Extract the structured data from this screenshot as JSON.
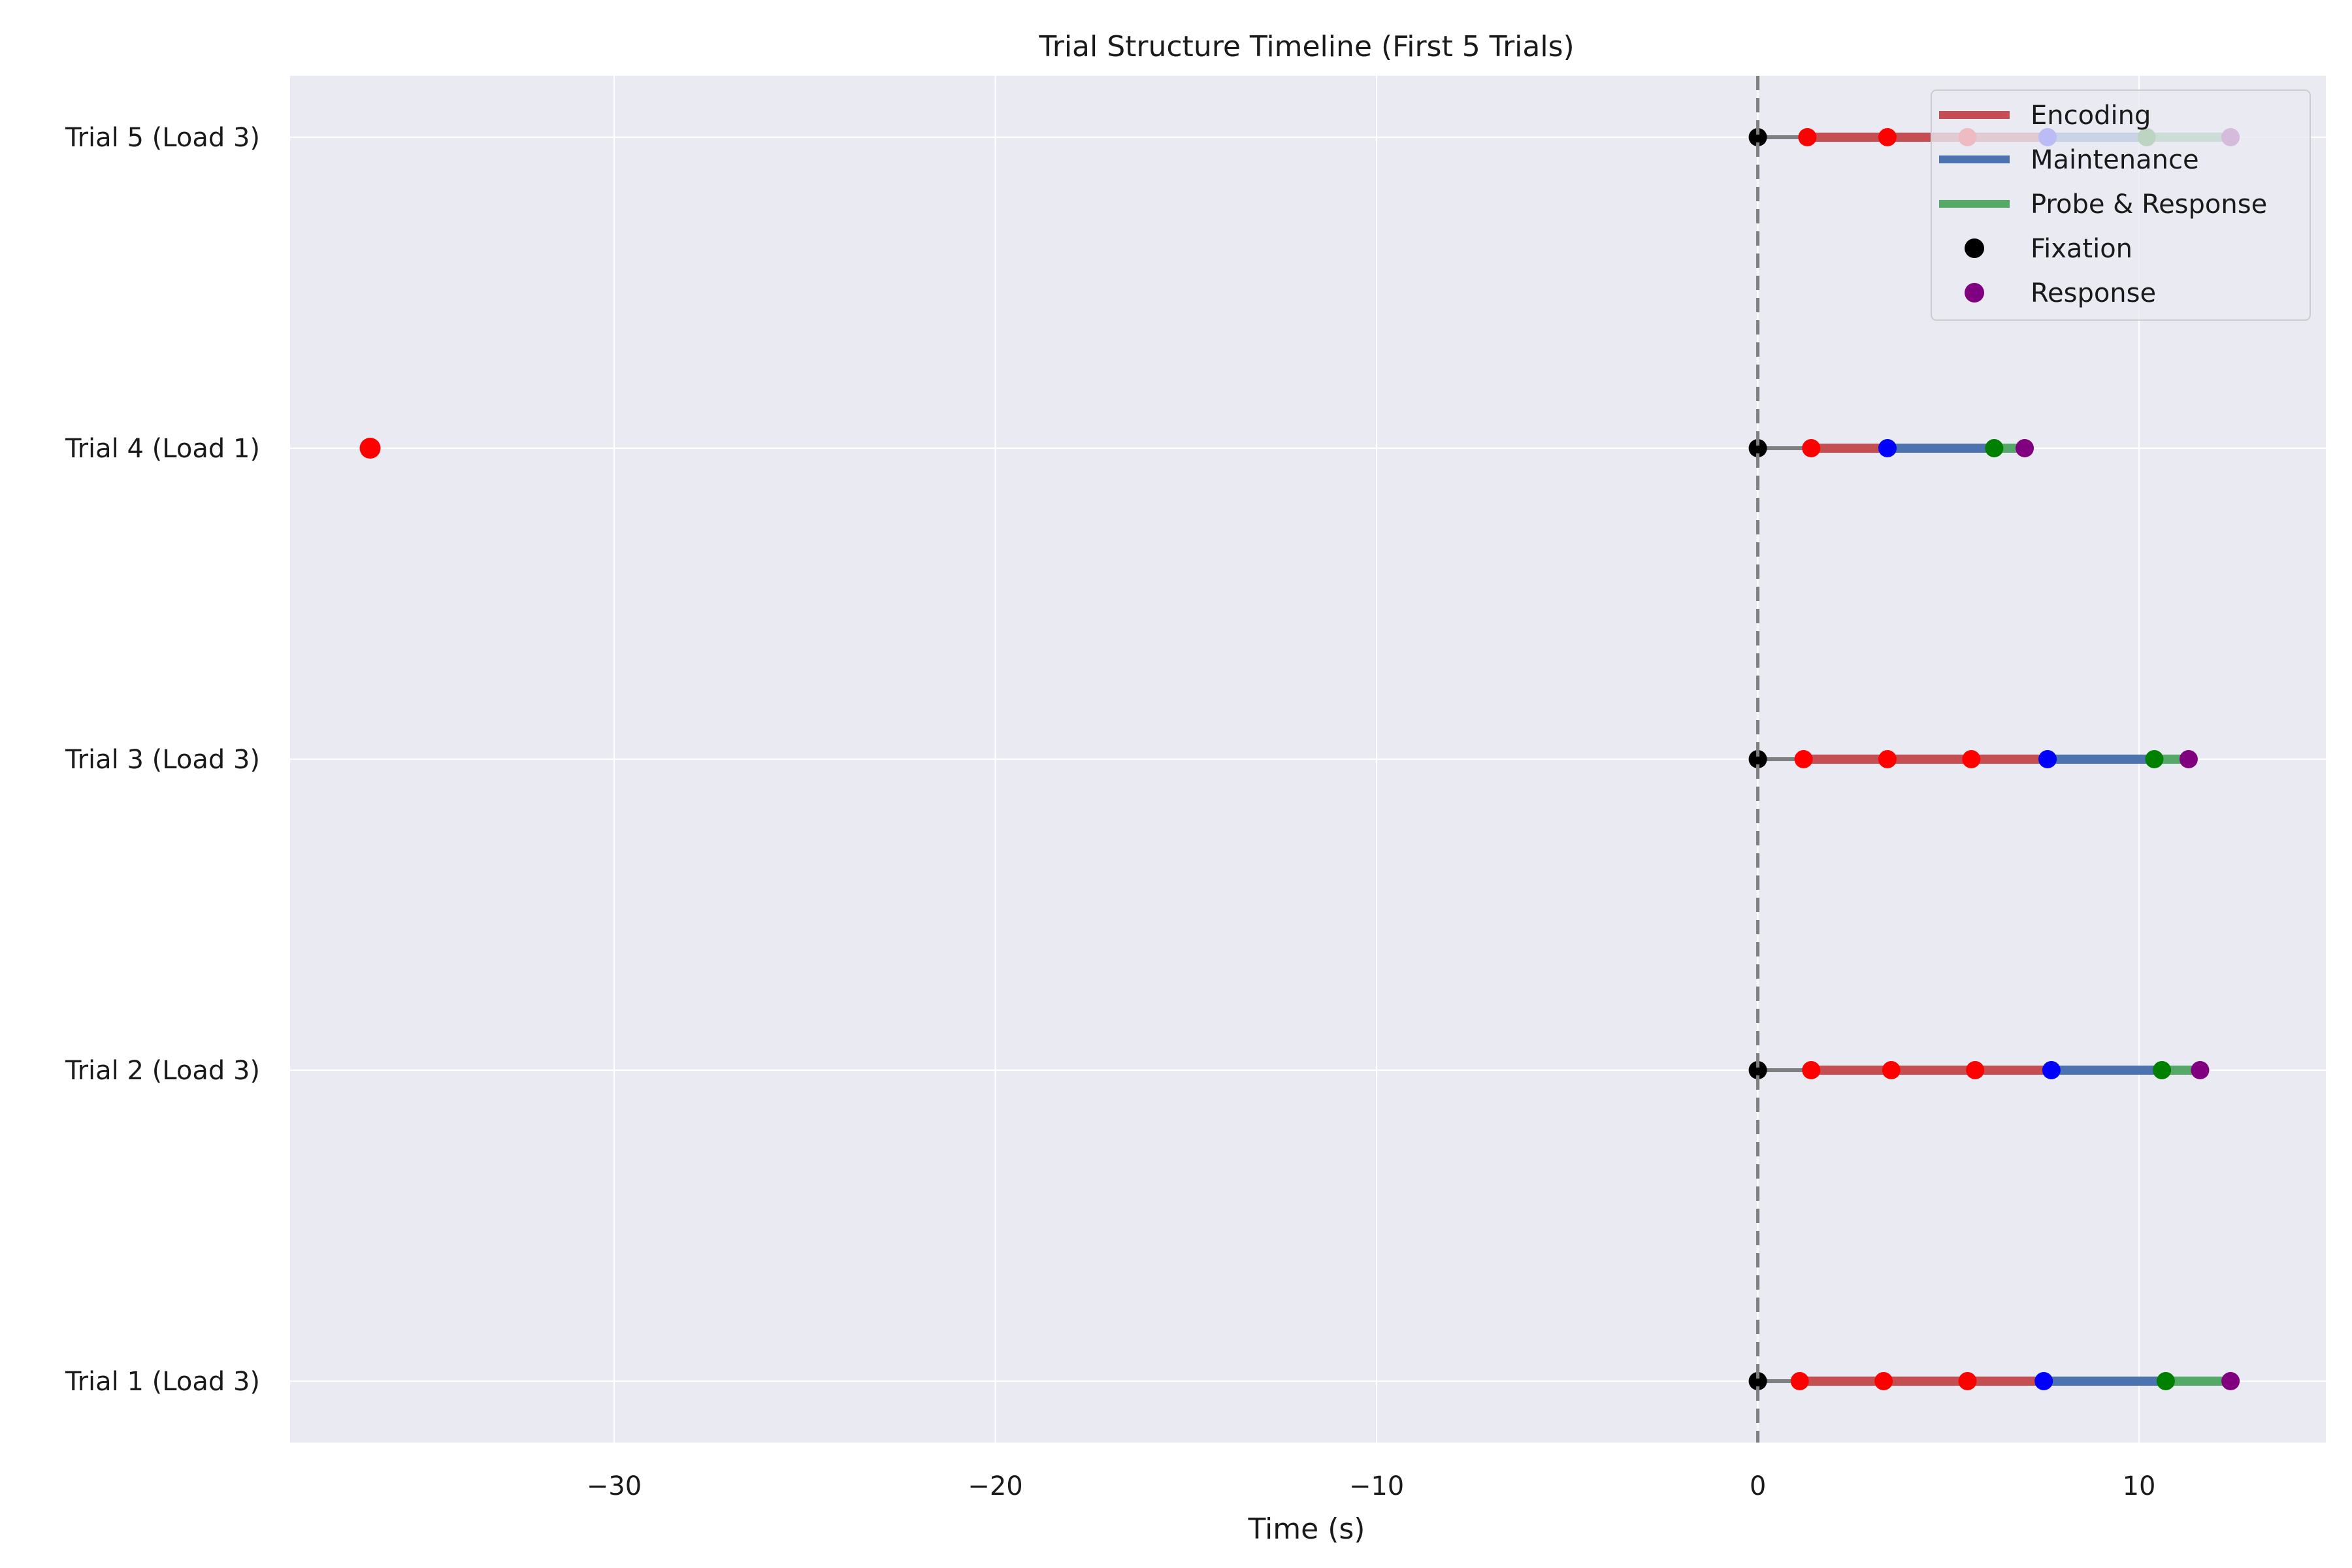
{
  "chart_data": {
    "type": "scatter",
    "title": "Trial Structure Timeline (First 5 Trials)",
    "xlabel": "Time (s)",
    "ylabel": "",
    "xlim": [
      -38.5,
      14.9
    ],
    "x_ticks": [
      -30,
      -20,
      -10,
      0,
      10
    ],
    "x_tick_labels": [
      "−30",
      "−20",
      "−10",
      "0",
      "10"
    ],
    "grid": true,
    "reference_line": {
      "x": 0,
      "style": "dashed",
      "color": "#7f7f7f"
    },
    "categories": [
      "Trial 1 (Load 3)",
      "Trial 2 (Load 3)",
      "Trial 3 (Load 3)",
      "Trial 4 (Load 1)",
      "Trial 5 (Load 3)"
    ],
    "colors": {
      "encoding": "#c44e52",
      "maintenance": "#4c72b0",
      "probe": "#55a868",
      "fixation_line": "#7f7f7f",
      "fixation_dot": "#000000",
      "encoding_dot": "#ff0000",
      "maintenance_dot": "#0000ff",
      "probe_dot": "#008000",
      "response_dot": "#800080"
    },
    "trials": [
      {
        "label": "Trial 1 (Load 3)",
        "fixation": 0,
        "encoding": [
          1.1,
          3.3,
          5.5
        ],
        "maintenance": 7.5,
        "probe": 10.7,
        "response": 12.4
      },
      {
        "label": "Trial 2 (Load 3)",
        "fixation": 0,
        "encoding": [
          1.4,
          3.5,
          5.7
        ],
        "maintenance": 7.7,
        "probe": 10.6,
        "response": 11.6
      },
      {
        "label": "Trial 3 (Load 3)",
        "fixation": 0,
        "encoding": [
          1.2,
          3.4,
          5.6
        ],
        "maintenance": 7.6,
        "probe": 10.4,
        "response": 11.3
      },
      {
        "label": "Trial 4 (Load 1)",
        "fixation": 0,
        "encoding": [
          1.4
        ],
        "maintenance": 3.4,
        "probe": 6.2,
        "response": 7.0,
        "outlier_encoding": -36.4
      },
      {
        "label": "Trial 5 (Load 3)",
        "fixation": 0,
        "encoding": [
          1.3,
          3.4,
          5.5
        ],
        "maintenance": 7.6,
        "probe": 10.2,
        "response": 12.4
      }
    ],
    "legend": {
      "position": "top-right",
      "entries": [
        {
          "label": "Encoding",
          "kind": "line",
          "color": "#c44e52"
        },
        {
          "label": "Maintenance",
          "kind": "line",
          "color": "#4c72b0"
        },
        {
          "label": "Probe & Response",
          "kind": "line",
          "color": "#55a868"
        },
        {
          "label": "Fixation",
          "kind": "dot",
          "color": "#000000"
        },
        {
          "label": "Response",
          "kind": "dot",
          "color": "#800080"
        }
      ]
    }
  }
}
